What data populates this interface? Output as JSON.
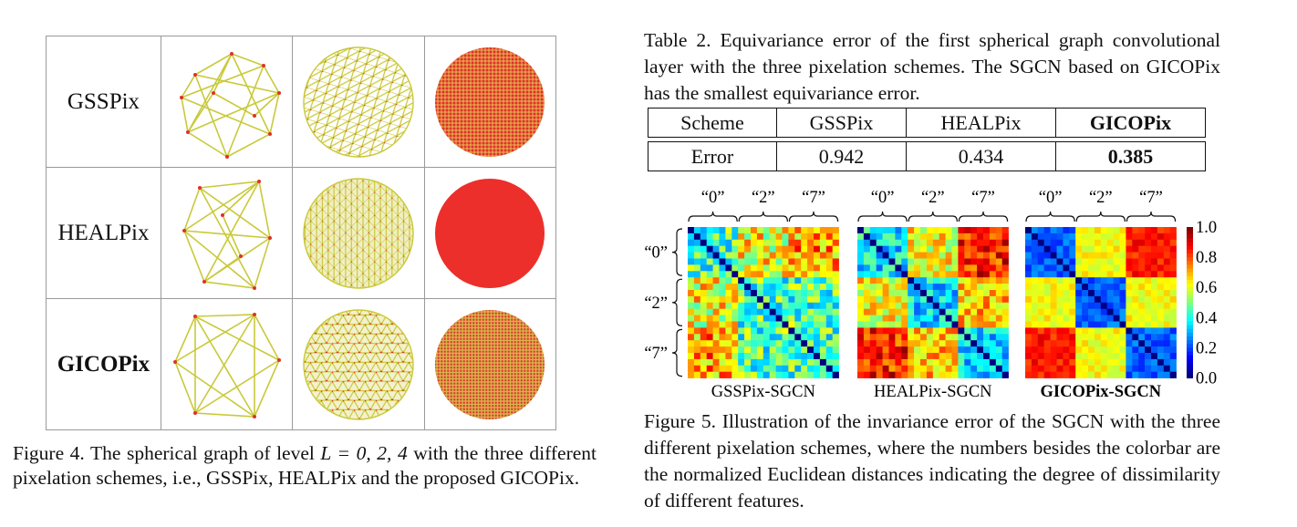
{
  "figure4": {
    "rows": [
      {
        "label": "GSSPix",
        "bold": false
      },
      {
        "label": "HEALPix",
        "bold": false
      },
      {
        "label": "GICOPix",
        "bold": true
      }
    ],
    "caption_prefix": "Figure 4. The spherical graph of level ",
    "caption_math": "L = 0, 2, 4",
    "caption_suffix": " with the three different pixelation schemes, i.e., GSSPix, HEALPix and the proposed GICOPix.",
    "colors": {
      "edge": "#c9c93a",
      "node": "#e0302a",
      "dense": "#e8352b"
    }
  },
  "table2": {
    "caption": "Table 2. Equivariance error of the first spherical graph convolutional layer with the three pixelation schemes. The SGCN based on GICOPix has the smallest equivariance error.",
    "header": [
      "Scheme",
      "GSSPix",
      "HEALPix",
      "GICOPix"
    ],
    "row": [
      "Error",
      "0.942",
      "0.434",
      "0.385"
    ]
  },
  "figure5": {
    "group_labels": [
      "“0”",
      "“2”",
      "“7”"
    ],
    "row_labels": [
      "“0”",
      "“2”",
      "“7”"
    ],
    "panels": [
      "GSSPix-SGCN",
      "HEALPix-SGCN",
      "GICOPix-SGCN"
    ],
    "colorbar_ticks": [
      "1.0",
      "0.8",
      "0.6",
      "0.4",
      "0.2",
      "0.0"
    ],
    "caption": "Figure 5. Illustration of the invariance error of the SGCN with the three different pixelation schemes, where the numbers besides the colorbar are the normalized Euclidean distances indicating the degree of dissimilarity of different features."
  }
}
